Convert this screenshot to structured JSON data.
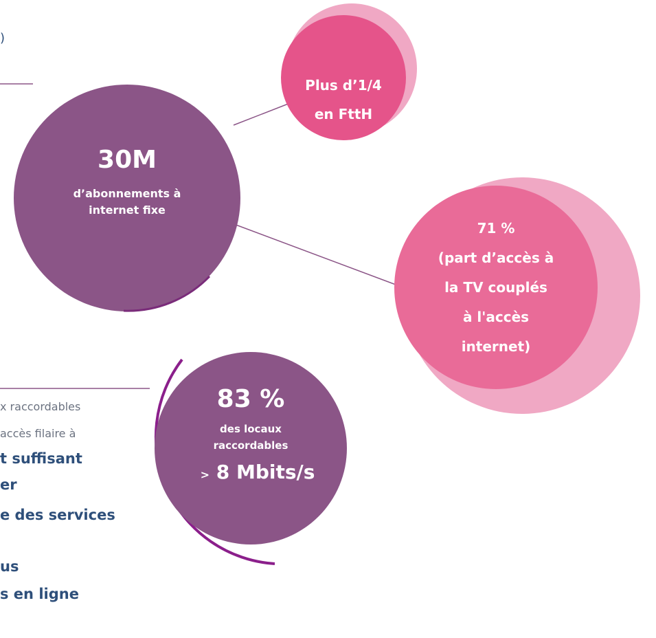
{
  "left_top": {
    "text": ")"
  },
  "left_block": {
    "lines": [
      "x raccordables",
      "accès filaire à"
    ],
    "bold_lines": [
      "t suffisant",
      "er",
      "e des services",
      "us",
      "s en ligne"
    ]
  },
  "nodes": [
    {
      "value": "30M",
      "label": "d’abonnements à internet fixe"
    },
    {
      "label_lines": [
        "Plus d’1/4",
        "en FttH"
      ]
    },
    {
      "label_lines": [
        "71 %",
        "(part d’accès à",
        "la TV couplés",
        "à l'accès",
        "internet)"
      ]
    },
    {
      "value": "83 %",
      "label": "des locaux raccordables",
      "prefix": ">",
      "speed": "8 Mbits/s"
    }
  ]
}
